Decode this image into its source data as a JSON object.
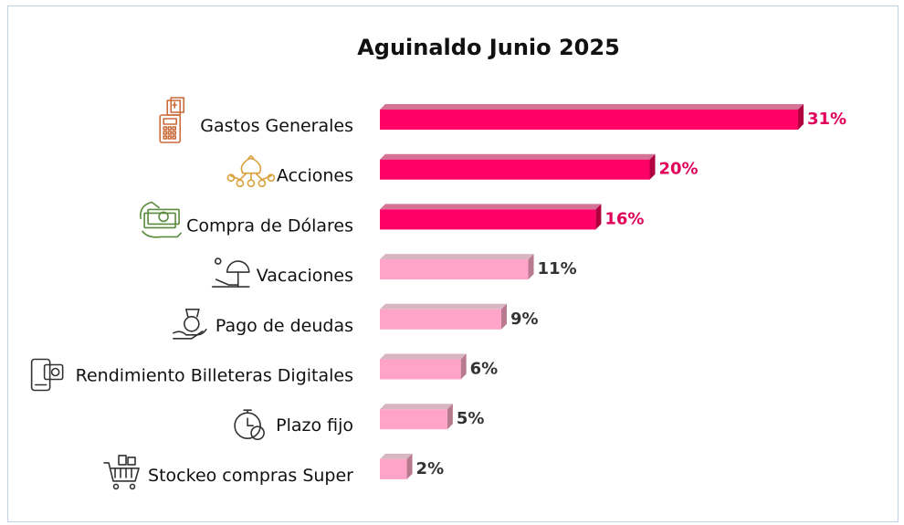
{
  "chart_data": {
    "type": "bar",
    "orientation": "horizontal",
    "title": "Aguinaldo Junio 2025",
    "xlabel": "",
    "ylabel": "",
    "xlim": [
      0,
      31
    ],
    "grid": false,
    "legend": "none",
    "unit": "%",
    "categories": [
      "Gastos Generales",
      "Acciones",
      "Compra de Dólares",
      "Vacaciones",
      "Pago de deudas",
      "Rendimiento Billeteras Digitales",
      "Plazo fijo",
      "Stockeo compras Super"
    ],
    "values": [
      31,
      20,
      16,
      11,
      9,
      6,
      5,
      2
    ],
    "value_labels": [
      "31%",
      "20%",
      "16%",
      "11%",
      "9%",
      "6%",
      "5%",
      "2%"
    ],
    "icons": [
      "calculator-money-icon",
      "money-bag-network-icon",
      "dollar-bills-hand-icon",
      "beach-umbrella-icon",
      "debt-hand-icon",
      "digital-wallet-icon",
      "stopwatch-dollar-icon",
      "shopping-cart-icon"
    ],
    "highlight_count": 3,
    "colors": {
      "highlight": "#ff0066",
      "highlight_dark": "#b0003f",
      "highlight_label": "#e0005a",
      "normal": "#ffa3c8",
      "normal_dark": "#b87a8e",
      "normal_label": "#333333",
      "calculator-money-icon": "#c96a37",
      "money-bag-network-icon": "#d9a13b",
      "dollar-bills-hand-icon": "#5a8a3c",
      "default-icon": "#333333"
    }
  }
}
